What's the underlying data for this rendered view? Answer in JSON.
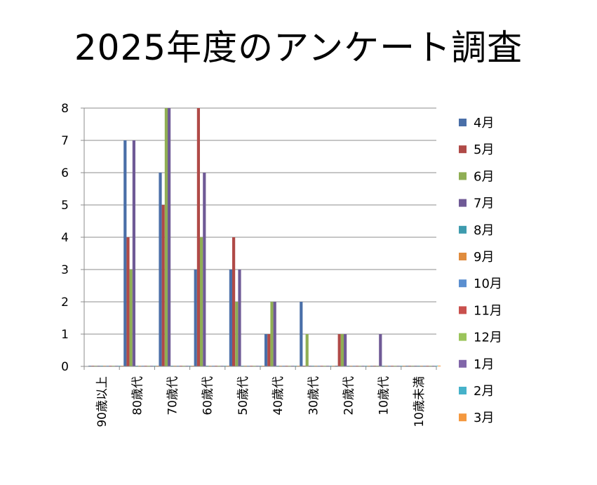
{
  "chart_data": {
    "type": "bar",
    "title": "2025年度のアンケート調査",
    "categories": [
      "90歳以上",
      "80歳代",
      "70歳代",
      "60歳代",
      "50歳代",
      "40歳代",
      "30歳代",
      "20歳代",
      "10歳代",
      "10歳未満"
    ],
    "ylim": [
      0,
      8
    ],
    "yticks": [
      "0",
      "1",
      "2",
      "3",
      "4",
      "5",
      "6",
      "7",
      "8"
    ],
    "grid": true,
    "legend_position": "right",
    "series": [
      {
        "name": "4月",
        "color": "#4a6fa8",
        "values": [
          0,
          7,
          6,
          3,
          3,
          1,
          2,
          0,
          0,
          0
        ]
      },
      {
        "name": "5月",
        "color": "#b04a47",
        "values": [
          0,
          4,
          5,
          8,
          4,
          1,
          0,
          1,
          0,
          0
        ]
      },
      {
        "name": "6月",
        "color": "#8fae54",
        "values": [
          0,
          3,
          8,
          4,
          2,
          2,
          1,
          1,
          0,
          0
        ]
      },
      {
        "name": "7月",
        "color": "#6f5a96",
        "values": [
          0,
          7,
          8,
          6,
          3,
          2,
          0,
          1,
          1,
          0
        ]
      },
      {
        "name": "8月",
        "color": "#3e9bae",
        "values": [
          0,
          0,
          0,
          0,
          0,
          0,
          0,
          0,
          0,
          0
        ]
      },
      {
        "name": "9月",
        "color": "#e08c3e",
        "values": [
          0,
          0,
          0,
          0,
          0,
          0,
          0,
          0,
          0,
          0
        ]
      },
      {
        "name": "10月",
        "color": "#5b8fd0",
        "values": [
          0,
          0,
          0,
          0,
          0,
          0,
          0,
          0,
          0,
          0
        ]
      },
      {
        "name": "11月",
        "color": "#c9504d",
        "values": [
          0,
          0,
          0,
          0,
          0,
          0,
          0,
          0,
          0,
          0
        ]
      },
      {
        "name": "12月",
        "color": "#9bc45b",
        "values": [
          0,
          0,
          0,
          0,
          0,
          0,
          0,
          0,
          0,
          0
        ]
      },
      {
        "name": "1月",
        "color": "#8166a9",
        "values": [
          0,
          0,
          0,
          0,
          0,
          0,
          0,
          0,
          0,
          0
        ]
      },
      {
        "name": "2月",
        "color": "#46b2ca",
        "values": [
          0,
          0,
          0,
          0,
          0,
          0,
          0,
          0,
          0,
          0
        ]
      },
      {
        "name": "3月",
        "color": "#f4983f",
        "values": [
          0,
          0,
          0,
          0,
          0,
          0,
          0,
          0,
          0,
          0
        ]
      }
    ]
  }
}
